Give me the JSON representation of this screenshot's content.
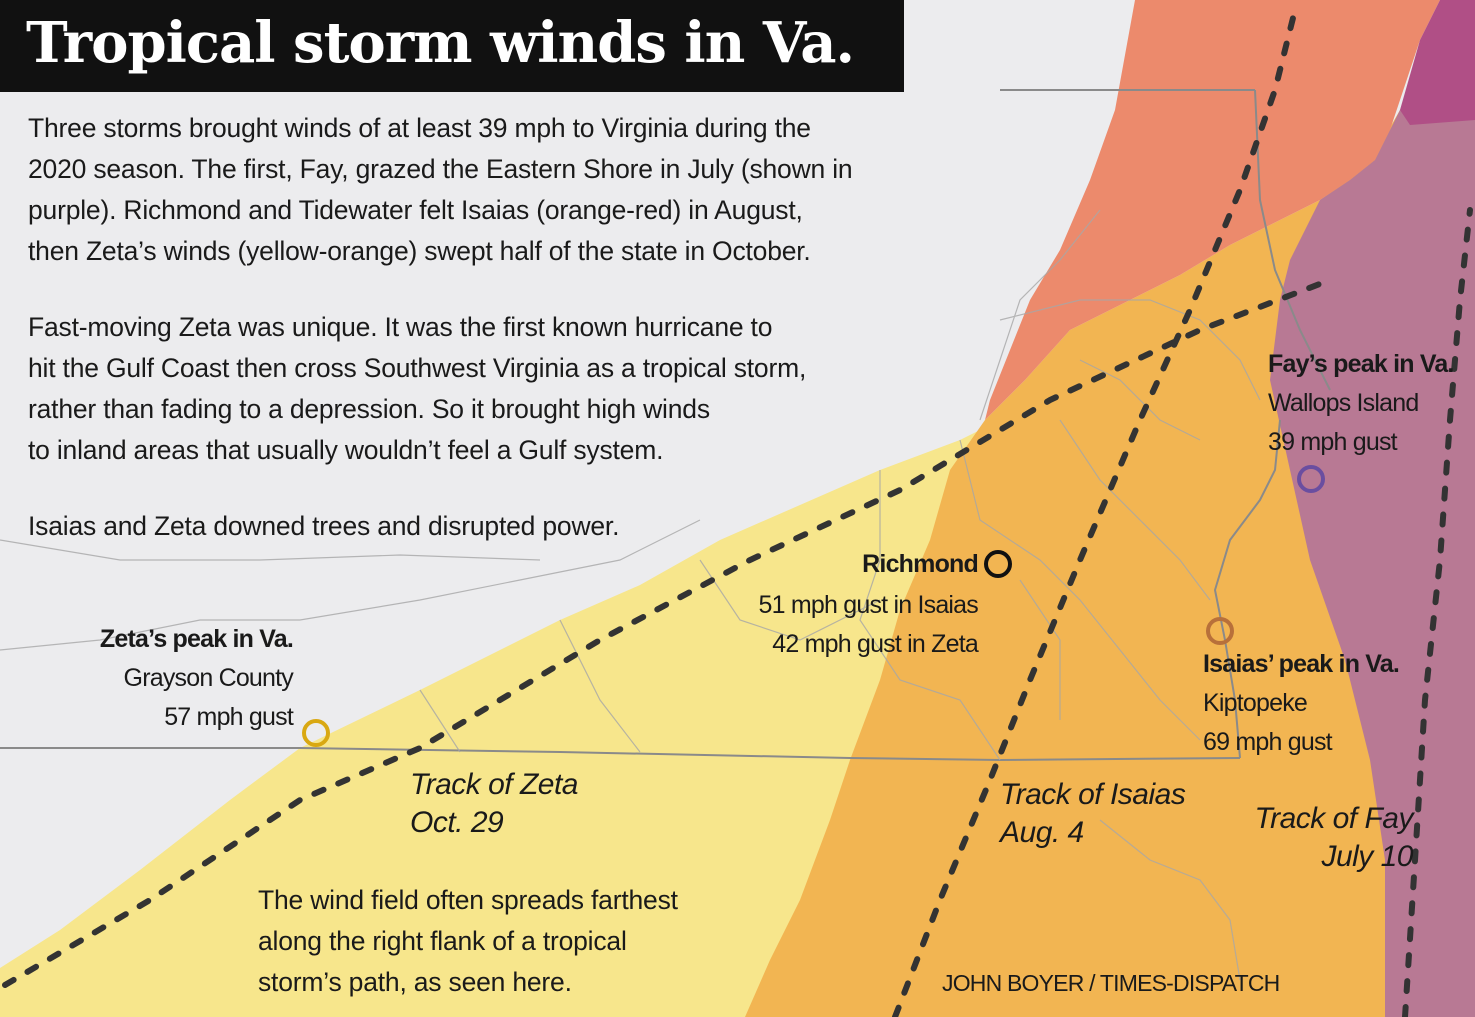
{
  "title": "Tropical storm winds in Va.",
  "intro": {
    "paragraph1": [
      "Three storms brought winds of at least 39 mph to Virginia during the",
      "2020 season. The first, Fay, grazed the Eastern Shore in July (shown in",
      "purple). Richmond and Tidewater felt Isaias (orange-red) in August,",
      "then Zeta’s winds (yellow-orange) swept half of the state in October."
    ],
    "paragraph2": [
      "Fast-moving Zeta was unique. It was the first known hurricane to",
      "hit the Gulf Coast then cross Southwest Virginia as a tropical storm,",
      "rather than fading to a depression. So it brought high winds",
      "to inland areas that usually wouldn’t feel a Gulf system."
    ],
    "paragraph3": "Isaias and Zeta downed trees and disrupted power."
  },
  "locations": {
    "richmond": {
      "name": "Richmond",
      "line1": "51 mph gust in Isaias",
      "line2": "42 mph gust in Zeta",
      "color": "#111111"
    },
    "zeta_peak": {
      "heading": "Zeta’s peak in Va.",
      "place": "Grayson County",
      "gust": "57 mph gust",
      "color": "#d9a812"
    },
    "fay_peak": {
      "heading": "Fay’s peak in Va.",
      "place": "Wallops Island",
      "gust": "39 mph gust",
      "color": "#6a4ea0"
    },
    "isaias_peak": {
      "heading": "Isaias’ peak in Va.",
      "place": "Kiptopeke",
      "gust": "69 mph gust",
      "color": "#b8703a"
    }
  },
  "tracks": {
    "zeta": {
      "name": "Track of Zeta",
      "date": "Oct. 29"
    },
    "isaias": {
      "name": "Track of Isaias",
      "date": "Aug. 4"
    },
    "fay": {
      "name": "Track of Fay",
      "date": "July 10"
    }
  },
  "note": [
    "The wind field often spreads farthest",
    "along the right flank of a tropical",
    "storm’s path, as seen here."
  ],
  "credit": "JOHN BOYER / TIMES-DISPATCH",
  "colors": {
    "background": "#ececee",
    "zeta_wind_field": "#f7e68c",
    "isaias_wind_field": "#f2b552",
    "isaias_strong_field": "#ec8a6c",
    "fay_wind_field": "#b87994",
    "fay_strong_field": "#b04f86",
    "track_line": "#333333",
    "title_bar": "#111111"
  }
}
